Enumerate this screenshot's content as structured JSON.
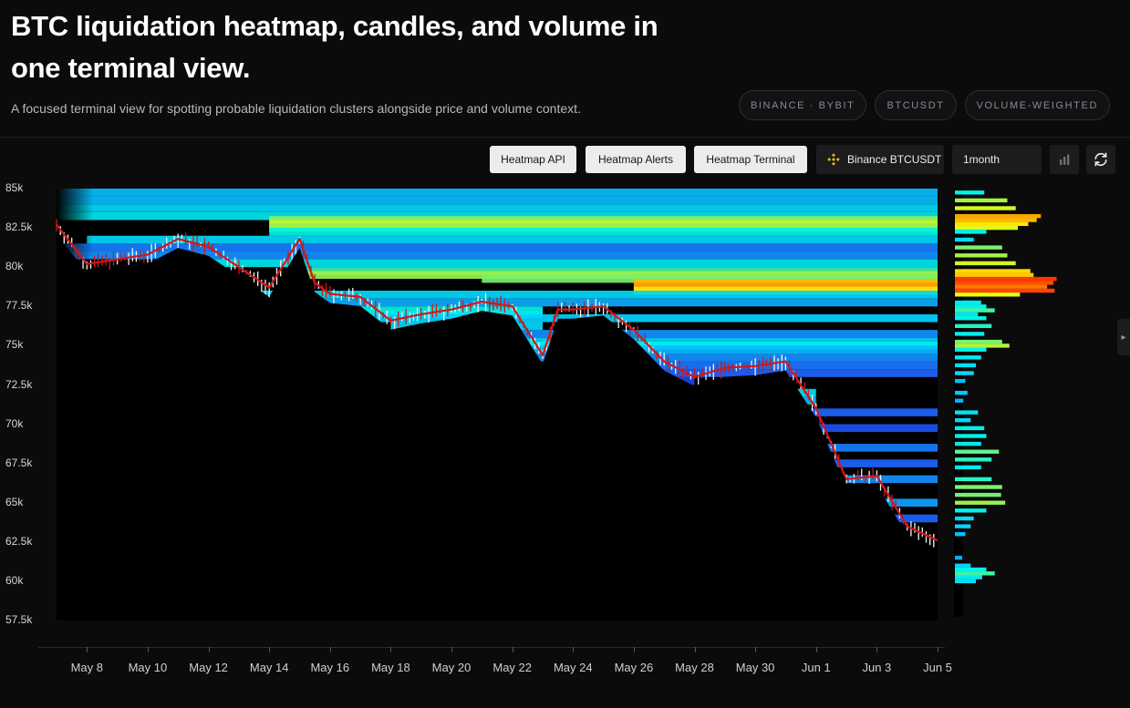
{
  "header": {
    "title": "BTC liquidation heatmap, candles, and volume in one terminal view.",
    "subtitle": "A focused terminal view for spotting probable liquidation clusters alongside price and volume context.",
    "badges": [
      "BINANCE · BYBIT",
      "BTCUSDT",
      "VOLUME-WEIGHTED"
    ]
  },
  "toolbar": {
    "heatmap_api_label": "Heatmap API",
    "heatmap_alerts_label": "Heatmap Alerts",
    "heatmap_terminal_label": "Heatmap Terminal",
    "exchange_pair_label": "Binance BTCUSDT",
    "timeframe_value": "1month",
    "icons": {
      "exchange": "binance-logo-icon",
      "chart_toggle": "bar-chart-icon",
      "refresh": "refresh-icon"
    }
  },
  "side_tab": {
    "icon": "chevron-right-icon"
  },
  "chart_data": {
    "type": "heatmap",
    "title": "",
    "xlabel": "",
    "ylabel": "",
    "y_tick_labels": [
      "85k",
      "82.5k",
      "80k",
      "77.5k",
      "75k",
      "72.5k",
      "70k",
      "67.5k",
      "65k",
      "62.5k",
      "60k",
      "57.5k"
    ],
    "ylim": [
      57500,
      85000
    ],
    "x_tick_labels": [
      "May 8",
      "May 10",
      "May 12",
      "May 14",
      "May 16",
      "May 18",
      "May 20",
      "May 22",
      "May 24",
      "May 26",
      "May 28",
      "May 30",
      "Jun 1",
      "Jun 3",
      "Jun 5"
    ],
    "xlim": [
      "2025-05-07",
      "2025-06-05"
    ],
    "colorscale": [
      "#000000",
      "#0a14c8",
      "#1e64ff",
      "#00d2ff",
      "#00f5e6",
      "#96f050",
      "#ffff00",
      "#ffa000",
      "#ff2000"
    ],
    "price_series": {
      "name": "BTCUSDT",
      "x": [
        "2025-05-07",
        "2025-05-08",
        "2025-05-09",
        "2025-05-10",
        "2025-05-11",
        "2025-05-12",
        "2025-05-13",
        "2025-05-14",
        "2025-05-15",
        "2025-05-15.5",
        "2025-05-16",
        "2025-05-17",
        "2025-05-18",
        "2025-05-19",
        "2025-05-20",
        "2025-05-21",
        "2025-05-22",
        "2025-05-23",
        "2025-05-23.5",
        "2025-05-24",
        "2025-05-25",
        "2025-05-26",
        "2025-05-27",
        "2025-05-28",
        "2025-05-29",
        "2025-05-30",
        "2025-05-31",
        "2025-06-01",
        "2025-06-02",
        "2025-06-03",
        "2025-06-04",
        "2025-06-05"
      ],
      "close": [
        82700,
        80200,
        80500,
        80800,
        81800,
        81300,
        80000,
        78700,
        81800,
        79000,
        78300,
        78100,
        76600,
        77000,
        77300,
        77800,
        77500,
        74400,
        77300,
        77300,
        77500,
        76000,
        74000,
        73000,
        73600,
        73700,
        74000,
        71000,
        66500,
        66700,
        63500,
        62600
      ]
    },
    "heat_bands": [
      {
        "price": 84750,
        "x_start": "2025-05-07",
        "x_end": "2025-06-05",
        "intensity": 0.35
      },
      {
        "price": 84250,
        "x_start": "2025-05-07",
        "x_end": "2025-06-05",
        "intensity": 0.35
      },
      {
        "price": 83750,
        "x_start": "2025-05-07",
        "x_end": "2025-06-05",
        "intensity": 0.4
      },
      {
        "price": 83250,
        "x_start": "2025-05-07",
        "x_end": "2025-06-05",
        "intensity": 0.45
      },
      {
        "price": 83000,
        "x_start": "2025-05-14",
        "x_end": "2025-06-05",
        "intensity": 0.62
      },
      {
        "price": 82750,
        "x_start": "2025-05-14",
        "x_end": "2025-06-05",
        "intensity": 0.67
      },
      {
        "price": 82500,
        "x_start": "2025-05-14",
        "x_end": "2025-06-05",
        "intensity": 0.63
      },
      {
        "price": 82250,
        "x_start": "2025-05-14",
        "x_end": "2025-06-05",
        "intensity": 0.5
      },
      {
        "price": 81750,
        "x_start": "2025-05-08",
        "x_end": "2025-06-05",
        "intensity": 0.4
      },
      {
        "price": 81250,
        "x_start": "2025-05-07",
        "x_end": "2025-06-05",
        "intensity": 0.28
      },
      {
        "price": 80750,
        "x_start": "2025-05-07",
        "x_end": "2025-06-05",
        "intensity": 0.3
      },
      {
        "price": 80250,
        "x_start": "2025-05-12",
        "x_end": "2025-06-05",
        "intensity": 0.45
      },
      {
        "price": 79750,
        "x_start": "2025-05-15",
        "x_end": "2025-06-05",
        "intensity": 0.55
      },
      {
        "price": 79500,
        "x_start": "2025-05-15",
        "x_end": "2025-06-05",
        "intensity": 0.63
      },
      {
        "price": 79250,
        "x_start": "2025-05-21",
        "x_end": "2025-06-05",
        "intensity": 0.6
      },
      {
        "price": 79000,
        "x_start": "2025-05-26",
        "x_end": "2025-06-05",
        "intensity": 0.84
      },
      {
        "price": 78750,
        "x_start": "2025-05-26",
        "x_end": "2025-06-05",
        "intensity": 0.88
      },
      {
        "price": 78500,
        "x_start": "2025-05-26",
        "x_end": "2025-06-05",
        "intensity": 0.78
      },
      {
        "price": 78250,
        "x_start": "2025-05-08",
        "x_end": "2025-06-05",
        "intensity": 0.4
      },
      {
        "price": 77750,
        "x_start": "2025-05-12",
        "x_end": "2025-06-05",
        "intensity": 0.33
      },
      {
        "price": 77250,
        "x_start": "2025-05-15",
        "x_end": "2025-05-23",
        "intensity": 0.5
      },
      {
        "price": 77000,
        "x_start": "2025-05-15",
        "x_end": "2025-05-23",
        "intensity": 0.45
      },
      {
        "price": 76750,
        "x_start": "2025-05-16",
        "x_end": "2025-06-05",
        "intensity": 0.38
      },
      {
        "price": 76250,
        "x_start": "2025-05-18",
        "x_end": "2025-05-23",
        "intensity": 0.4
      },
      {
        "price": 75750,
        "x_start": "2025-05-09",
        "x_end": "2025-06-05",
        "intensity": 0.3
      },
      {
        "price": 75250,
        "x_start": "2025-05-18",
        "x_end": "2025-06-05",
        "intensity": 0.38
      },
      {
        "price": 75000,
        "x_start": "2025-05-18",
        "x_end": "2025-06-05",
        "intensity": 0.48
      },
      {
        "price": 74750,
        "x_start": "2025-05-20",
        "x_end": "2025-06-05",
        "intensity": 0.35
      },
      {
        "price": 74250,
        "x_start": "2025-05-22",
        "x_end": "2025-06-05",
        "intensity": 0.3
      },
      {
        "price": 73750,
        "x_start": "2025-05-24",
        "x_end": "2025-06-05",
        "intensity": 0.27
      },
      {
        "price": 73250,
        "x_start": "2025-05-24",
        "x_end": "2025-06-05",
        "intensity": 0.25
      },
      {
        "price": 72750,
        "x_start": "2025-05-19",
        "x_end": "2025-05-28",
        "intensity": 0.2
      },
      {
        "price": 72000,
        "x_start": "2025-05-28",
        "x_end": "2025-06-01",
        "intensity": 0.42
      },
      {
        "price": 71500,
        "x_start": "2025-05-28",
        "x_end": "2025-06-01",
        "intensity": 0.35
      },
      {
        "price": 70750,
        "x_start": "2025-05-29",
        "x_end": "2025-06-05",
        "intensity": 0.25
      },
      {
        "price": 69750,
        "x_start": "2025-05-31",
        "x_end": "2025-06-05",
        "intensity": 0.22
      },
      {
        "price": 68500,
        "x_start": "2025-06-01",
        "x_end": "2025-06-05",
        "intensity": 0.28
      },
      {
        "price": 67500,
        "x_start": "2025-06-01",
        "x_end": "2025-06-05",
        "intensity": 0.25
      },
      {
        "price": 66500,
        "x_start": "2025-06-02",
        "x_end": "2025-06-05",
        "intensity": 0.3
      },
      {
        "price": 65000,
        "x_start": "2025-06-02",
        "x_end": "2025-06-05",
        "intensity": 0.32
      },
      {
        "price": 64000,
        "x_start": "2025-06-03",
        "x_end": "2025-06-05",
        "intensity": 0.25
      },
      {
        "price": 61000,
        "x_start": "2025-06-04",
        "x_end": "2025-06-05",
        "intensity": 0.2
      },
      {
        "price": 60500,
        "x_start": "2025-06-04",
        "x_end": "2025-06-05",
        "intensity": 0.22
      }
    ],
    "volume_profile": [
      {
        "price": 84750,
        "value": 0.28
      },
      {
        "price": 84250,
        "value": 0.5
      },
      {
        "price": 83750,
        "value": 0.58
      },
      {
        "price": 83250,
        "value": 0.82
      },
      {
        "price": 83000,
        "value": 0.78
      },
      {
        "price": 82750,
        "value": 0.7
      },
      {
        "price": 82500,
        "value": 0.6
      },
      {
        "price": 82250,
        "value": 0.3
      },
      {
        "price": 81750,
        "value": 0.18
      },
      {
        "price": 81250,
        "value": 0.45
      },
      {
        "price": 80750,
        "value": 0.5
      },
      {
        "price": 80250,
        "value": 0.58
      },
      {
        "price": 79750,
        "value": 0.72
      },
      {
        "price": 79500,
        "value": 0.75
      },
      {
        "price": 79250,
        "value": 0.97
      },
      {
        "price": 79000,
        "value": 0.94
      },
      {
        "price": 78750,
        "value": 0.88
      },
      {
        "price": 78500,
        "value": 0.95
      },
      {
        "price": 78250,
        "value": 0.62
      },
      {
        "price": 77750,
        "value": 0.25
      },
      {
        "price": 77500,
        "value": 0.3
      },
      {
        "price": 77250,
        "value": 0.38
      },
      {
        "price": 77000,
        "value": 0.22
      },
      {
        "price": 76750,
        "value": 0.3
      },
      {
        "price": 76250,
        "value": 0.35
      },
      {
        "price": 75750,
        "value": 0.28
      },
      {
        "price": 75250,
        "value": 0.45
      },
      {
        "price": 75000,
        "value": 0.52
      },
      {
        "price": 74750,
        "value": 0.3
      },
      {
        "price": 74250,
        "value": 0.25
      },
      {
        "price": 73750,
        "value": 0.2
      },
      {
        "price": 73250,
        "value": 0.18
      },
      {
        "price": 72750,
        "value": 0.1
      },
      {
        "price": 72000,
        "value": 0.12
      },
      {
        "price": 71500,
        "value": 0.08
      },
      {
        "price": 70750,
        "value": 0.22
      },
      {
        "price": 70250,
        "value": 0.15
      },
      {
        "price": 69750,
        "value": 0.28
      },
      {
        "price": 69250,
        "value": 0.3
      },
      {
        "price": 68750,
        "value": 0.25
      },
      {
        "price": 68250,
        "value": 0.42
      },
      {
        "price": 67750,
        "value": 0.35
      },
      {
        "price": 67250,
        "value": 0.25
      },
      {
        "price": 66500,
        "value": 0.35
      },
      {
        "price": 66000,
        "value": 0.45
      },
      {
        "price": 65500,
        "value": 0.44
      },
      {
        "price": 65000,
        "value": 0.48
      },
      {
        "price": 64500,
        "value": 0.3
      },
      {
        "price": 64000,
        "value": 0.18
      },
      {
        "price": 63500,
        "value": 0.15
      },
      {
        "price": 63000,
        "value": 0.1
      },
      {
        "price": 61500,
        "value": 0.07
      },
      {
        "price": 61000,
        "value": 0.15
      },
      {
        "price": 60750,
        "value": 0.3
      },
      {
        "price": 60500,
        "value": 0.38
      },
      {
        "price": 60250,
        "value": 0.26
      },
      {
        "price": 60000,
        "value": 0.2
      }
    ]
  }
}
